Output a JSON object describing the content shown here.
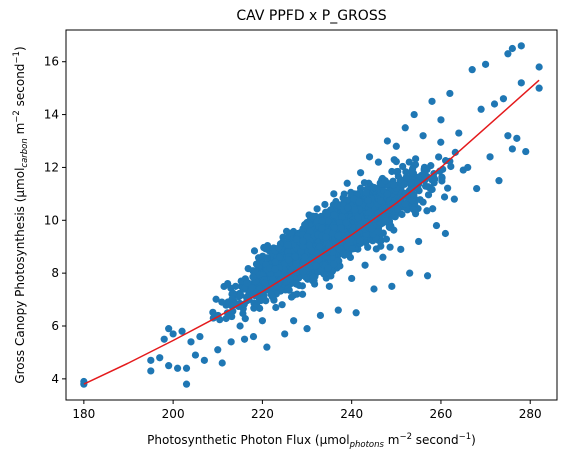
{
  "chart_data": {
    "type": "scatter",
    "title": "CAV PPFD x P_GROSS",
    "xlabel": {
      "prefix": "Photosynthetic Photon Flux (µmol",
      "sub": "photons",
      "middle": " m",
      "sup1": "−2",
      "middle2": " second",
      "sup2": "−1",
      "suffix": ")"
    },
    "ylabel": {
      "prefix": "Gross Canopy Photosynthesis (µmol",
      "sub": "carbon",
      "middle": " m",
      "sup1": "−2",
      "middle2": " second",
      "sup2": "−1",
      "suffix": ")"
    },
    "xlim": [
      176,
      286
    ],
    "ylim": [
      3.2,
      17.2
    ],
    "xticks": [
      "180",
      "200",
      "220",
      "240",
      "260",
      "280"
    ],
    "yticks": [
      "4",
      "6",
      "8",
      "10",
      "12",
      "14",
      "16"
    ],
    "xtick_values": [
      180,
      200,
      220,
      240,
      260,
      280
    ],
    "ytick_values": [
      4,
      6,
      8,
      10,
      12,
      14,
      16
    ],
    "grid": false,
    "series": [
      {
        "kind": "points",
        "color": "#1f77b4",
        "trend_note": "dense cloud roughly following y ≈ 8.6 + 0.105*(x-228) with spread about ±1.2",
        "points": [
          [
            180,
            3.9
          ],
          [
            180,
            3.8
          ],
          [
            195,
            4.7
          ],
          [
            195,
            4.3
          ],
          [
            197,
            4.8
          ],
          [
            198,
            5.5
          ],
          [
            199,
            4.5
          ],
          [
            201,
            4.4
          ],
          [
            202,
            5.8
          ],
          [
            203,
            3.8
          ],
          [
            203,
            4.4
          ],
          [
            199,
            5.9
          ],
          [
            200,
            5.7
          ],
          [
            204,
            5.4
          ],
          [
            205,
            4.9
          ],
          [
            206,
            5.6
          ],
          [
            207,
            4.7
          ],
          [
            209,
            6.3
          ],
          [
            210,
            5.1
          ],
          [
            211,
            4.6
          ],
          [
            212,
            6.8
          ],
          [
            213,
            5.4
          ],
          [
            214,
            7.5
          ],
          [
            215,
            6.0
          ],
          [
            216,
            5.5
          ],
          [
            217,
            7.0
          ],
          [
            218,
            5.6
          ],
          [
            219,
            8.0
          ],
          [
            220,
            6.2
          ],
          [
            221,
            5.2
          ],
          [
            222,
            8.8
          ],
          [
            223,
            6.7
          ],
          [
            224,
            8.3
          ],
          [
            225,
            5.7
          ],
          [
            226,
            9.0
          ],
          [
            227,
            6.2
          ],
          [
            228,
            9.5
          ],
          [
            229,
            7.2
          ],
          [
            230,
            5.9
          ],
          [
            231,
            10.1
          ],
          [
            232,
            8.0
          ],
          [
            233,
            6.4
          ],
          [
            234,
            10.6
          ],
          [
            235,
            7.5
          ],
          [
            236,
            11.0
          ],
          [
            237,
            6.6
          ],
          [
            238,
            9.0
          ],
          [
            239,
            11.4
          ],
          [
            240,
            7.8
          ],
          [
            241,
            6.5
          ],
          [
            242,
            11.8
          ],
          [
            243,
            8.3
          ],
          [
            244,
            12.4
          ],
          [
            245,
            7.4
          ],
          [
            246,
            12.2
          ],
          [
            247,
            8.6
          ],
          [
            248,
            13.0
          ],
          [
            249,
            7.5
          ],
          [
            250,
            12.8
          ],
          [
            251,
            8.9
          ],
          [
            252,
            13.5
          ],
          [
            253,
            8.0
          ],
          [
            254,
            14.0
          ],
          [
            255,
            9.2
          ],
          [
            256,
            13.2
          ],
          [
            257,
            7.9
          ],
          [
            258,
            14.5
          ],
          [
            259,
            9.8
          ],
          [
            260,
            13.8
          ],
          [
            261,
            9.5
          ],
          [
            262,
            14.8
          ],
          [
            263,
            10.8
          ],
          [
            264,
            13.3
          ],
          [
            265,
            11.9
          ],
          [
            266,
            12.0
          ],
          [
            267,
            15.7
          ],
          [
            268,
            11.2
          ],
          [
            269,
            14.2
          ],
          [
            270,
            15.9
          ],
          [
            271,
            12.4
          ],
          [
            272,
            14.4
          ],
          [
            273,
            11.5
          ],
          [
            274,
            14.6
          ],
          [
            275,
            16.3
          ],
          [
            275,
            13.2
          ],
          [
            276,
            16.5
          ],
          [
            276,
            12.7
          ],
          [
            277,
            13.1
          ],
          [
            278,
            16.6
          ],
          [
            278,
            15.2
          ],
          [
            279,
            12.6
          ],
          [
            282,
            15.8
          ],
          [
            282,
            15.0
          ]
        ]
      },
      {
        "kind": "fit-line",
        "color": "#e41a1c",
        "x": [
          180,
          190,
          200,
          210,
          220,
          230,
          240,
          250,
          260,
          270,
          282
        ],
        "y": [
          3.8,
          4.6,
          5.45,
          6.35,
          7.3,
          8.35,
          9.45,
          10.65,
          12.0,
          13.5,
          15.3
        ]
      }
    ]
  }
}
